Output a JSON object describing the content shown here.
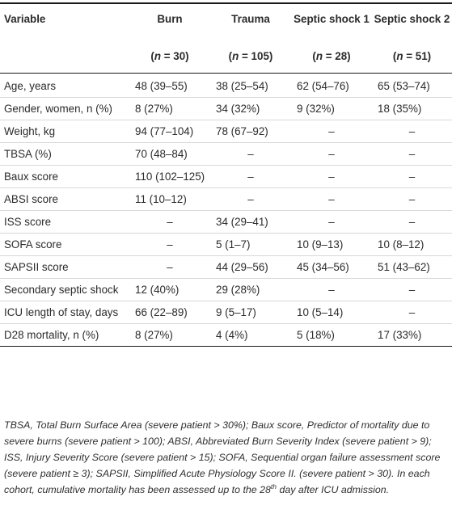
{
  "headers": {
    "variable": "Variable",
    "burn": "Burn",
    "trauma": "Trauma",
    "septic1": "Septic shock 1",
    "septic2": "Septic shock 2"
  },
  "n_values": {
    "burn": "30",
    "trauma": "105",
    "septic1": "28",
    "septic2": "51"
  },
  "rows": [
    {
      "variable": "Age, years",
      "burn": "48 (39–55)",
      "trauma": "38 (25–54)",
      "septic1": "62 (54–76)",
      "septic2": "65 (53–74)"
    },
    {
      "variable": "Gender, women, n (%)",
      "burn": "8 (27%)",
      "trauma": "34 (32%)",
      "septic1": "9 (32%)",
      "septic2": "18 (35%)"
    },
    {
      "variable": "Weight, kg",
      "burn": "94 (77–104)",
      "trauma": "78 (67–92)",
      "septic1": "–",
      "septic2": "–"
    },
    {
      "variable": "TBSA (%)",
      "burn": "70 (48–84)",
      "trauma": "–",
      "septic1": "–",
      "septic2": "–"
    },
    {
      "variable": "Baux score",
      "burn": "110 (102–125)",
      "trauma": "–",
      "septic1": "–",
      "septic2": "–"
    },
    {
      "variable": "ABSI score",
      "burn": "11 (10–12)",
      "trauma": "–",
      "septic1": "–",
      "septic2": "–"
    },
    {
      "variable": "ISS score",
      "burn": "–",
      "trauma": "34 (29–41)",
      "septic1": "–",
      "septic2": "–"
    },
    {
      "variable": "SOFA score",
      "burn": "–",
      "trauma": "5 (1–7)",
      "septic1": "10 (9–13)",
      "septic2": "10 (8–12)"
    },
    {
      "variable": "SAPSII score",
      "burn": "–",
      "trauma": "44 (29–56)",
      "septic1": "45 (34–56)",
      "septic2": "51 (43–62)"
    },
    {
      "variable": "Secondary septic shock",
      "burn": "12 (40%)",
      "trauma": "29 (28%)",
      "septic1": "–",
      "septic2": "–"
    },
    {
      "variable": "ICU length of stay, days",
      "burn": "66 (22–89)",
      "trauma": "9 (5–17)",
      "septic1": "10 (5–14)",
      "septic2": "–"
    },
    {
      "variable": "D28 mortality, n (%)",
      "burn": "8 (27%)",
      "trauma": "4 (4%)",
      "septic1": "5 (18%)",
      "septic2": "17 (33%)"
    }
  ],
  "footnote": {
    "text_before_sup": "TBSA, Total Burn Surface Area (severe patient > 30%); Baux score, Predictor of mortality due to severe burns (severe patient > 100); ABSI, Abbreviated Burn Severity Index (severe patient > 9); ISS, Injury Severity Score (severe patient > 15); SOFA, Sequential organ failure assessment score (severe patient ≥ 3); SAPSII, Simplified Acute Physiology Score II. (severe patient > 30). In each cohort, cumulative mortality has been assessed up to the 28",
    "sup": "th",
    "text_after_sup": " day after ICU admission."
  }
}
